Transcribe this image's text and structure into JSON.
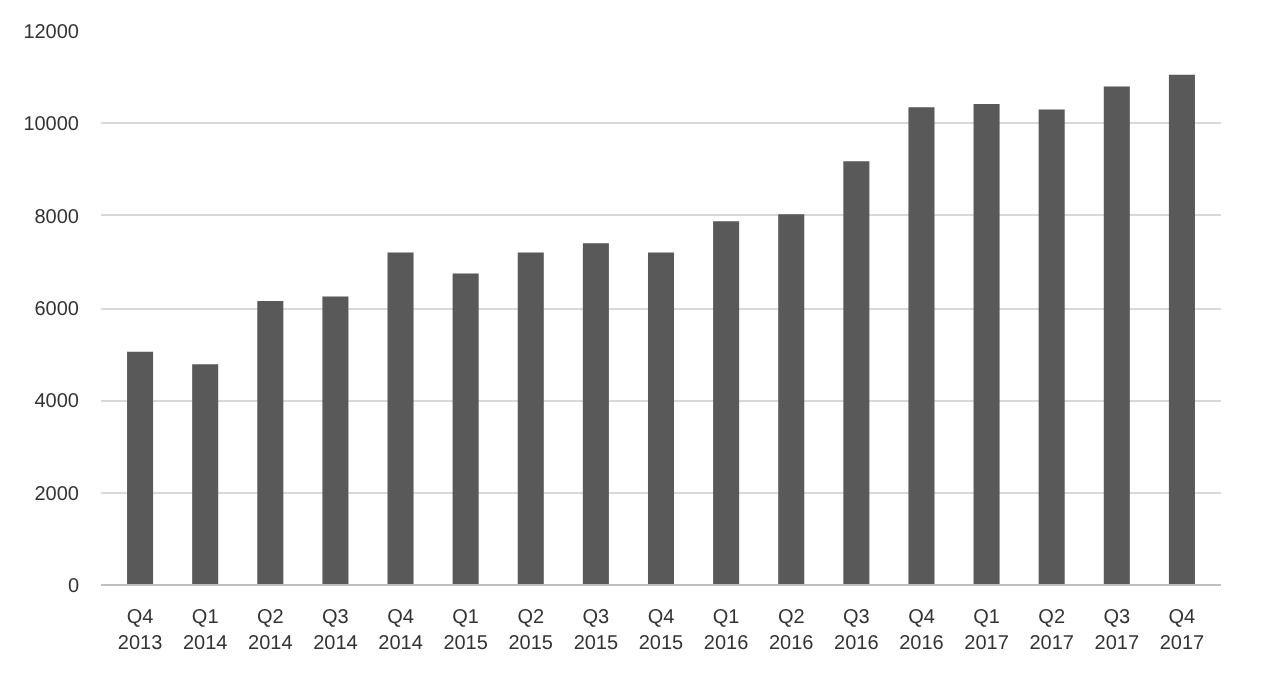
{
  "chart_data": {
    "type": "bar",
    "categories": [
      "Q4\n2013",
      "Q1\n2014",
      "Q2\n2014",
      "Q3\n2014",
      "Q4\n2014",
      "Q1\n2015",
      "Q2\n2015",
      "Q3\n2015",
      "Q4\n2015",
      "Q1\n2016",
      "Q2\n2016",
      "Q3\n2016",
      "Q4\n2016",
      "Q1\n2017",
      "Q2\n2017",
      "Q3\n2017",
      "Q4\n2017"
    ],
    "values": [
      5050,
      4780,
      6150,
      6250,
      7200,
      6750,
      7200,
      7400,
      7200,
      7880,
      8030,
      9180,
      10350,
      10420,
      10300,
      10800,
      11050
    ],
    "color": "#595959",
    "ylim": [
      0,
      12000
    ],
    "yticks": [
      0,
      2000,
      4000,
      6000,
      8000,
      10000,
      12000
    ],
    "grid": "y"
  }
}
